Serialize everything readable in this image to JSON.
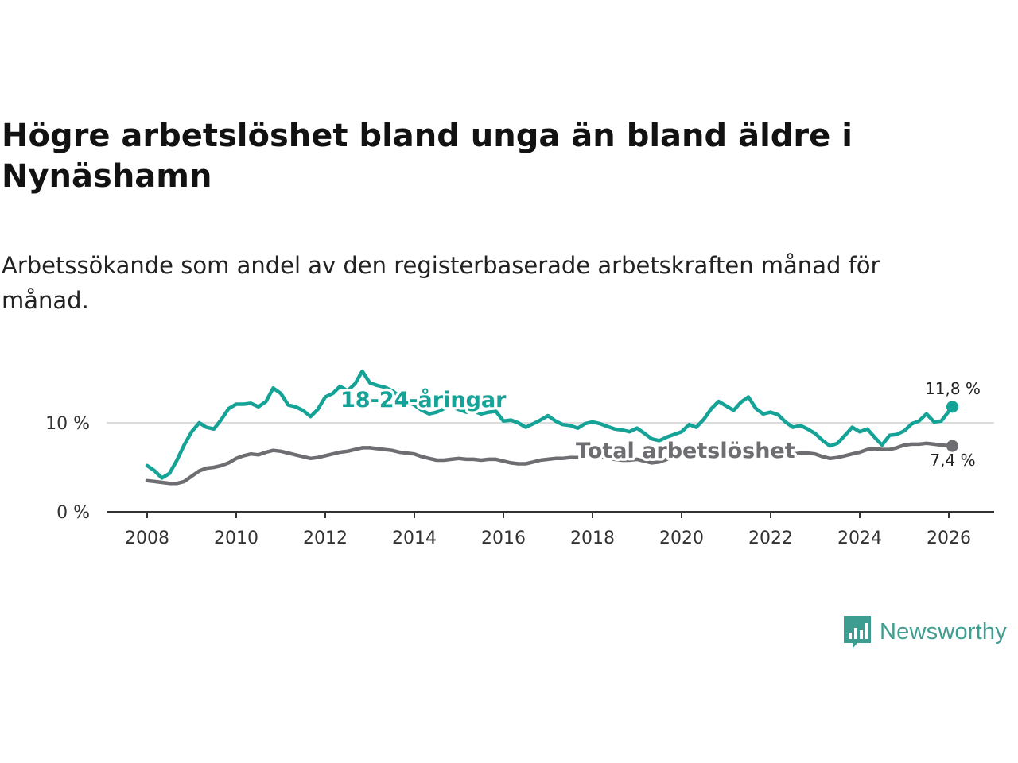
{
  "title": "Högre arbetslöshet bland unga än bland äldre i Nynäshamn",
  "subtitle": "Arbetssökande som andel av den registerbaserade arbetskraften månad för månad.",
  "brand": {
    "name": "Newsworthy",
    "color": "#3d9d90"
  },
  "chart_data": {
    "type": "line",
    "title": "Högre arbetslöshet bland unga än bland äldre i Nynäshamn",
    "xlabel": "",
    "ylabel": "",
    "x_ticks": [
      2008,
      2010,
      2012,
      2014,
      2016,
      2018,
      2020,
      2022,
      2024,
      2026
    ],
    "x_tick_labels": [
      "2008",
      "2010",
      "2012",
      "2014",
      "2016",
      "2018",
      "2020",
      "2022",
      "2024",
      "2026"
    ],
    "y_ticks": [
      0,
      10
    ],
    "y_tick_labels": [
      "0 %",
      "10 %"
    ],
    "xlim": [
      2007.1,
      2027.1
    ],
    "ylim": [
      0,
      16
    ],
    "grid": true,
    "series": [
      {
        "name": "18-24-åringar",
        "label": "18-24-åringar",
        "color": "#14a396",
        "end_label": "11,8 %",
        "points": [
          [
            2008.0,
            5.2
          ],
          [
            2008.17,
            4.6
          ],
          [
            2008.33,
            3.8
          ],
          [
            2008.5,
            4.3
          ],
          [
            2008.67,
            5.8
          ],
          [
            2008.83,
            7.5
          ],
          [
            2009.0,
            9.0
          ],
          [
            2009.17,
            10.0
          ],
          [
            2009.33,
            9.5
          ],
          [
            2009.5,
            9.3
          ],
          [
            2009.67,
            10.4
          ],
          [
            2009.83,
            11.6
          ],
          [
            2010.0,
            12.1
          ],
          [
            2010.17,
            12.1
          ],
          [
            2010.33,
            12.2
          ],
          [
            2010.5,
            11.8
          ],
          [
            2010.67,
            12.4
          ],
          [
            2010.83,
            13.9
          ],
          [
            2011.0,
            13.3
          ],
          [
            2011.17,
            12.0
          ],
          [
            2011.33,
            11.8
          ],
          [
            2011.5,
            11.4
          ],
          [
            2011.67,
            10.7
          ],
          [
            2011.83,
            11.5
          ],
          [
            2012.0,
            12.9
          ],
          [
            2012.17,
            13.3
          ],
          [
            2012.33,
            14.1
          ],
          [
            2012.5,
            13.6
          ],
          [
            2012.67,
            14.4
          ],
          [
            2012.83,
            15.8
          ],
          [
            2013.0,
            14.5
          ],
          [
            2013.17,
            14.2
          ],
          [
            2013.33,
            14.0
          ],
          [
            2013.5,
            13.6
          ],
          [
            2013.67,
            13.0
          ],
          [
            2013.83,
            12.4
          ],
          [
            2014.0,
            12.0
          ],
          [
            2014.17,
            11.4
          ],
          [
            2014.33,
            11.0
          ],
          [
            2014.5,
            11.2
          ],
          [
            2014.67,
            11.6
          ],
          [
            2014.83,
            11.8
          ],
          [
            2015.0,
            11.5
          ],
          [
            2015.17,
            11.2
          ],
          [
            2015.33,
            11.3
          ],
          [
            2015.5,
            11.0
          ],
          [
            2015.67,
            11.2
          ],
          [
            2015.83,
            11.3
          ],
          [
            2016.0,
            10.2
          ],
          [
            2016.17,
            10.3
          ],
          [
            2016.33,
            10.0
          ],
          [
            2016.5,
            9.5
          ],
          [
            2016.67,
            9.9
          ],
          [
            2016.83,
            10.3
          ],
          [
            2017.0,
            10.8
          ],
          [
            2017.17,
            10.2
          ],
          [
            2017.33,
            9.8
          ],
          [
            2017.5,
            9.7
          ],
          [
            2017.67,
            9.4
          ],
          [
            2017.83,
            9.9
          ],
          [
            2018.0,
            10.1
          ],
          [
            2018.17,
            9.9
          ],
          [
            2018.33,
            9.6
          ],
          [
            2018.5,
            9.3
          ],
          [
            2018.67,
            9.2
          ],
          [
            2018.83,
            9.0
          ],
          [
            2019.0,
            9.4
          ],
          [
            2019.17,
            8.8
          ],
          [
            2019.33,
            8.2
          ],
          [
            2019.5,
            8.0
          ],
          [
            2019.67,
            8.4
          ],
          [
            2019.83,
            8.7
          ],
          [
            2020.0,
            9.0
          ],
          [
            2020.17,
            9.8
          ],
          [
            2020.33,
            9.5
          ],
          [
            2020.5,
            10.4
          ],
          [
            2020.67,
            11.6
          ],
          [
            2020.83,
            12.4
          ],
          [
            2021.0,
            11.9
          ],
          [
            2021.17,
            11.4
          ],
          [
            2021.33,
            12.3
          ],
          [
            2021.5,
            12.9
          ],
          [
            2021.67,
            11.6
          ],
          [
            2021.83,
            11.0
          ],
          [
            2022.0,
            11.2
          ],
          [
            2022.17,
            10.9
          ],
          [
            2022.33,
            10.1
          ],
          [
            2022.5,
            9.5
          ],
          [
            2022.67,
            9.7
          ],
          [
            2022.83,
            9.3
          ],
          [
            2023.0,
            8.8
          ],
          [
            2023.17,
            8.0
          ],
          [
            2023.33,
            7.4
          ],
          [
            2023.5,
            7.7
          ],
          [
            2023.67,
            8.6
          ],
          [
            2023.83,
            9.5
          ],
          [
            2024.0,
            9.0
          ],
          [
            2024.17,
            9.3
          ],
          [
            2024.33,
            8.4
          ],
          [
            2024.5,
            7.5
          ],
          [
            2024.67,
            8.6
          ],
          [
            2024.83,
            8.7
          ],
          [
            2025.0,
            9.1
          ],
          [
            2025.17,
            9.9
          ],
          [
            2025.33,
            10.2
          ],
          [
            2025.5,
            11.0
          ],
          [
            2025.67,
            10.1
          ],
          [
            2025.83,
            10.2
          ],
          [
            2026.08,
            11.8
          ]
        ]
      },
      {
        "name": "Total arbetslöshet",
        "label": "Total arbetslöshet",
        "color": "#6d6d72",
        "end_label": "7,4 %",
        "points": [
          [
            2008.0,
            3.5
          ],
          [
            2008.17,
            3.4
          ],
          [
            2008.33,
            3.3
          ],
          [
            2008.5,
            3.2
          ],
          [
            2008.67,
            3.2
          ],
          [
            2008.83,
            3.4
          ],
          [
            2009.0,
            4.0
          ],
          [
            2009.17,
            4.6
          ],
          [
            2009.33,
            4.9
          ],
          [
            2009.5,
            5.0
          ],
          [
            2009.67,
            5.2
          ],
          [
            2009.83,
            5.5
          ],
          [
            2010.0,
            6.0
          ],
          [
            2010.17,
            6.3
          ],
          [
            2010.33,
            6.5
          ],
          [
            2010.5,
            6.4
          ],
          [
            2010.67,
            6.7
          ],
          [
            2010.83,
            6.9
          ],
          [
            2011.0,
            6.8
          ],
          [
            2011.17,
            6.6
          ],
          [
            2011.33,
            6.4
          ],
          [
            2011.5,
            6.2
          ],
          [
            2011.67,
            6.0
          ],
          [
            2011.83,
            6.1
          ],
          [
            2012.0,
            6.3
          ],
          [
            2012.17,
            6.5
          ],
          [
            2012.33,
            6.7
          ],
          [
            2012.5,
            6.8
          ],
          [
            2012.67,
            7.0
          ],
          [
            2012.83,
            7.2
          ],
          [
            2013.0,
            7.2
          ],
          [
            2013.17,
            7.1
          ],
          [
            2013.33,
            7.0
          ],
          [
            2013.5,
            6.9
          ],
          [
            2013.67,
            6.7
          ],
          [
            2013.83,
            6.6
          ],
          [
            2014.0,
            6.5
          ],
          [
            2014.17,
            6.2
          ],
          [
            2014.33,
            6.0
          ],
          [
            2014.5,
            5.8
          ],
          [
            2014.67,
            5.8
          ],
          [
            2014.83,
            5.9
          ],
          [
            2015.0,
            6.0
          ],
          [
            2015.17,
            5.9
          ],
          [
            2015.33,
            5.9
          ],
          [
            2015.5,
            5.8
          ],
          [
            2015.67,
            5.9
          ],
          [
            2015.83,
            5.9
          ],
          [
            2016.0,
            5.7
          ],
          [
            2016.17,
            5.5
          ],
          [
            2016.33,
            5.4
          ],
          [
            2016.5,
            5.4
          ],
          [
            2016.67,
            5.6
          ],
          [
            2016.83,
            5.8
          ],
          [
            2017.0,
            5.9
          ],
          [
            2017.17,
            6.0
          ],
          [
            2017.33,
            6.0
          ],
          [
            2017.5,
            6.1
          ],
          [
            2017.67,
            6.1
          ],
          [
            2017.83,
            6.2
          ],
          [
            2018.0,
            6.3
          ],
          [
            2018.17,
            6.2
          ],
          [
            2018.33,
            6.0
          ],
          [
            2018.5,
            5.9
          ],
          [
            2018.67,
            5.8
          ],
          [
            2018.83,
            5.8
          ],
          [
            2019.0,
            5.9
          ],
          [
            2019.17,
            5.7
          ],
          [
            2019.33,
            5.5
          ],
          [
            2019.5,
            5.6
          ],
          [
            2019.67,
            5.9
          ],
          [
            2019.83,
            6.2
          ],
          [
            2020.0,
            6.6
          ],
          [
            2020.17,
            6.9
          ],
          [
            2020.33,
            7.0
          ],
          [
            2020.5,
            7.1
          ],
          [
            2020.67,
            7.2
          ],
          [
            2020.83,
            7.1
          ],
          [
            2021.0,
            7.0
          ],
          [
            2021.17,
            6.9
          ],
          [
            2021.33,
            7.0
          ],
          [
            2021.5,
            7.0
          ],
          [
            2021.67,
            6.9
          ],
          [
            2021.83,
            6.8
          ],
          [
            2022.0,
            6.7
          ],
          [
            2022.17,
            6.6
          ],
          [
            2022.33,
            6.5
          ],
          [
            2022.5,
            6.5
          ],
          [
            2022.67,
            6.6
          ],
          [
            2022.83,
            6.6
          ],
          [
            2023.0,
            6.5
          ],
          [
            2023.17,
            6.2
          ],
          [
            2023.33,
            6.0
          ],
          [
            2023.5,
            6.1
          ],
          [
            2023.67,
            6.3
          ],
          [
            2023.83,
            6.5
          ],
          [
            2024.0,
            6.7
          ],
          [
            2024.17,
            7.0
          ],
          [
            2024.33,
            7.1
          ],
          [
            2024.5,
            7.0
          ],
          [
            2024.67,
            7.0
          ],
          [
            2024.83,
            7.2
          ],
          [
            2025.0,
            7.5
          ],
          [
            2025.17,
            7.6
          ],
          [
            2025.33,
            7.6
          ],
          [
            2025.5,
            7.7
          ],
          [
            2025.67,
            7.6
          ],
          [
            2025.83,
            7.5
          ],
          [
            2026.08,
            7.4
          ]
        ]
      }
    ]
  }
}
